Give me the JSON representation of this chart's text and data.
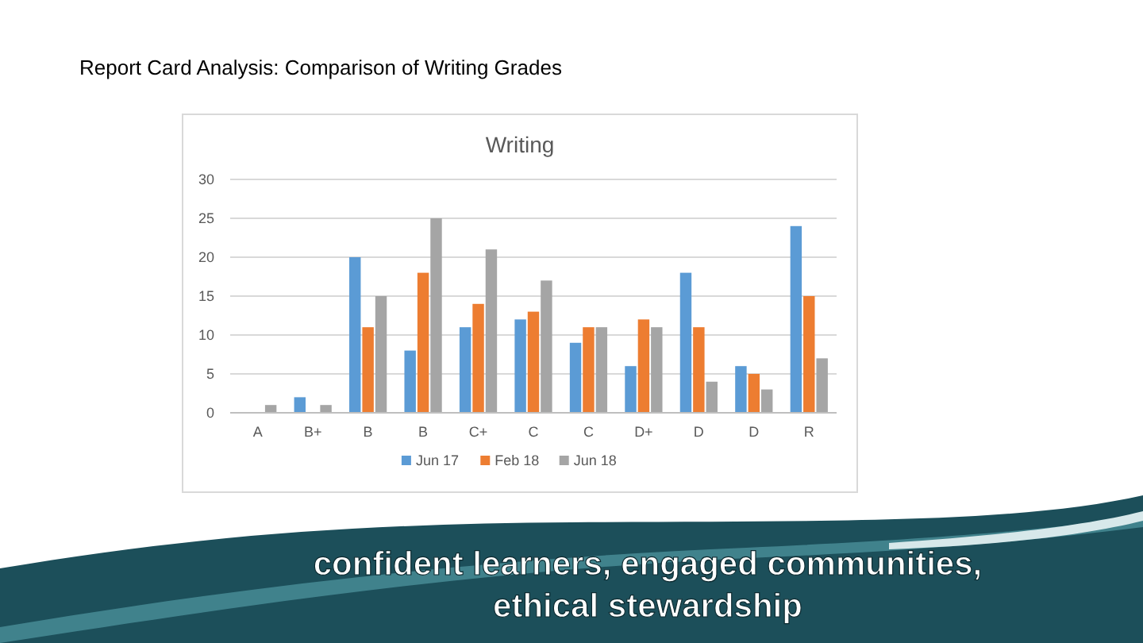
{
  "chart_data": {
    "type": "bar",
    "title": "Report Card Analysis: Comparison of Writing Grades",
    "subtitle": "Writing",
    "categories": [
      "A",
      "B+",
      "B",
      "B",
      "C+",
      "C",
      "C",
      "D+",
      "D",
      "D",
      "R"
    ],
    "series": [
      {
        "name": "Jun 17",
        "color": "#5b9bd5",
        "values": [
          0,
          2,
          20,
          8,
          11,
          12,
          9,
          6,
          18,
          6,
          24
        ]
      },
      {
        "name": "Feb 18",
        "color": "#ed7d31",
        "values": [
          0,
          0,
          11,
          18,
          14,
          13,
          11,
          12,
          11,
          5,
          15
        ]
      },
      {
        "name": "Jun 18",
        "color": "#a5a5a5",
        "values": [
          1,
          1,
          15,
          25,
          21,
          17,
          11,
          11,
          4,
          3,
          7
        ]
      }
    ],
    "ylim": [
      0,
      30
    ],
    "yticks": [
      0,
      5,
      10,
      15,
      20,
      25,
      30
    ],
    "grid": "y",
    "legend": "bottom",
    "annotations": [
      "confident learners, engaged communities, ethical stewardship"
    ]
  }
}
